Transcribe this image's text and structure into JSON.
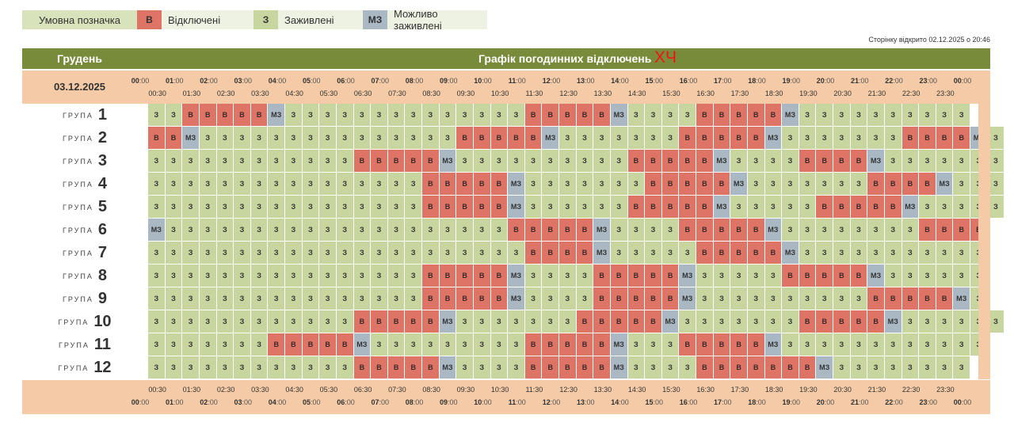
{
  "legend": {
    "title": "Умовна позначка",
    "items": [
      {
        "code": "В",
        "label": "Відключені",
        "color": "#dd7466"
      },
      {
        "code": "З",
        "label": "Заживлені",
        "color": "#c7d59e"
      },
      {
        "code": "МЗ",
        "label": "Можливо заживлені",
        "color": "#a9b8c3"
      }
    ]
  },
  "opened_text": "Сторінку відкрито 02.12.2025 о 20:46",
  "header": {
    "month": "Грудень",
    "title": "Графік погодинних відключень",
    "title_mark": "ХЧ"
  },
  "date": "03.12.2025",
  "hour_labels": [
    "00",
    "01",
    "02",
    "03",
    "04",
    "05",
    "06",
    "07",
    "08",
    "09",
    "10",
    "11",
    "12",
    "13",
    "14",
    "15",
    "16",
    "17",
    "18",
    "19",
    "20",
    "21",
    "22",
    "23",
    "00"
  ],
  "half_labels": [
    "00:30",
    "01:30",
    "02:30",
    "03:30",
    "04:30",
    "05:30",
    "06:30",
    "07:30",
    "08:30",
    "09:30",
    "10:30",
    "11:30",
    "12:30",
    "13:30",
    "14:30",
    "15:30",
    "16:30",
    "17:30",
    "18:30",
    "19:30",
    "20:30",
    "21:30",
    "22:30",
    "23:30"
  ],
  "group_word": "ГРУПА",
  "groups": [
    {
      "num": "1",
      "cells": "З З В В В В В МЗ З З З З З З З З З З З З З З В В В В В МЗ З З З З В В В В В МЗ З З З З З З З З З З"
    },
    {
      "num": "2",
      "cells": "В В МЗ З З З З З З З З З З З З З З З В В В В В МЗ З З З З З З З В В В В В МЗ З З З З З З З В В В В МЗ З"
    },
    {
      "num": "3",
      "cells": "З З З З З З З З З З З З В В В В В МЗ З З З З З З З З З З В В В В В МЗ З З З З В В В В МЗ З З З З З З З"
    },
    {
      "num": "4",
      "cells": "З З З З З З З З З З З З З З З З В В В В В МЗ З З З З З З З В В В В В МЗ З З З З З З З В В В В МЗ З З З"
    },
    {
      "num": "5",
      "cells": "З З З З З З З З З З З З З З З З В В В В В МЗ З З З З З З В В В В В МЗ З З З З З В В В В В МЗ З З З З З"
    },
    {
      "num": "6",
      "cells": "МЗ З З З З З З З З З З З З З З З З З З З З В В В В В МЗ З З З З В В В В В МЗ З З З З З З З З В В В В"
    },
    {
      "num": "7",
      "cells": "З З З З З З З З З З З З З З З З З З З З З З В В В В МЗ З З З З З В В В В В МЗ З З З З З З З З З З З"
    },
    {
      "num": "8",
      "cells": "З З З З З З З З З З З З З З З З В В В В В МЗ З З З З В В В В В МЗ З З З З З В В В В В МЗ З З З З З З"
    },
    {
      "num": "9",
      "cells": "З З З З З З З З З З З З З З З З В В В В В МЗ З З З З В В В В В МЗ З З З З З З З З З З В В В В В МЗ З"
    },
    {
      "num": "10",
      "cells": "З З З З З З З З З З З З В В В В В МЗ З З З З З З З В В В В В МЗ З З З З З З З В В В В В МЗ З З З З З З"
    },
    {
      "num": "11",
      "cells": "З З З З З З З В В В В В МЗ З З З З З З З З З В В В В В МЗ З З З В В В В В МЗ З З З З З З З З З З З З"
    },
    {
      "num": "12",
      "cells": "З З З З З З З З З З З З В В В В В МЗ З З З З В В В В В МЗ З З З З В В В В В В В МЗ З З З З З З З З"
    }
  ]
}
